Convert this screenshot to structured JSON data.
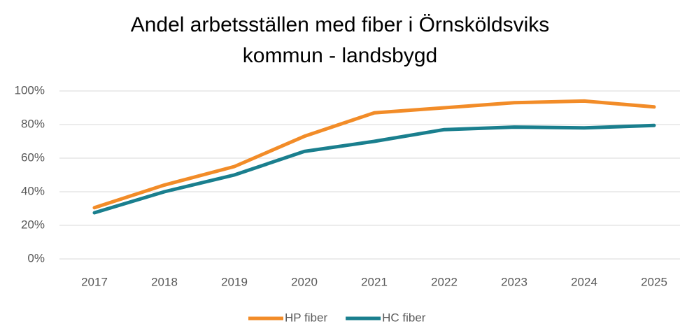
{
  "chart_data": {
    "type": "line",
    "title": "Andel arbetsställen med fiber i Örnsköldsviks kommun - landsbygd",
    "categories": [
      "2017",
      "2018",
      "2019",
      "2020",
      "2021",
      "2022",
      "2023",
      "2024",
      "2025"
    ],
    "series": [
      {
        "name": "HP fiber",
        "color": "#f28c28",
        "values": [
          30.5,
          44,
          55,
          73,
          87,
          90,
          93,
          94,
          90.5
        ]
      },
      {
        "name": "HC fiber",
        "color": "#1a7f8e",
        "values": [
          27.5,
          40,
          50,
          64,
          70,
          77,
          78.5,
          78,
          79.5
        ]
      }
    ],
    "ylim": [
      0,
      100
    ],
    "yticks": [
      {
        "value": 0,
        "label": "0%"
      },
      {
        "value": 20,
        "label": "20%"
      },
      {
        "value": 40,
        "label": "40%"
      },
      {
        "value": 60,
        "label": "60%"
      },
      {
        "value": 80,
        "label": "80%"
      },
      {
        "value": 100,
        "label": "100%"
      }
    ],
    "grid": true,
    "legend": "bottom"
  }
}
